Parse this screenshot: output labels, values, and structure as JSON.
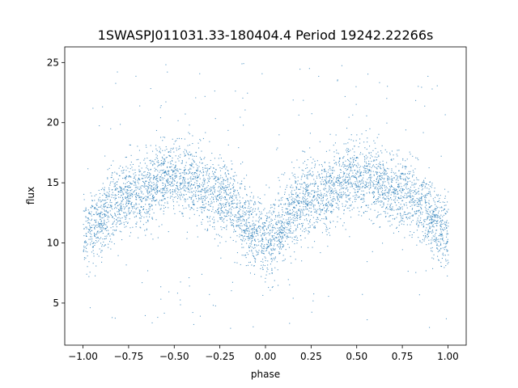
{
  "chart_data": {
    "type": "scatter",
    "title": "1SWASPJ011031.33-180404.4 Period 19242.22266s",
    "xlabel": "phase",
    "ylabel": "flux",
    "xlim": [
      -1.1,
      1.1
    ],
    "ylim": [
      1.5,
      26.3
    ],
    "xticks": [
      -1.0,
      -0.75,
      -0.5,
      -0.25,
      0.0,
      0.25,
      0.5,
      0.75,
      1.0
    ],
    "xtick_labels": [
      "−1.00",
      "−0.75",
      "−0.50",
      "−0.25",
      "0.00",
      "0.25",
      "0.50",
      "0.75",
      "1.00"
    ],
    "yticks": [
      5,
      10,
      15,
      20,
      25
    ],
    "ytick_labels": [
      "5",
      "10",
      "15",
      "20",
      "25"
    ],
    "grid": false,
    "legend": "none",
    "marker_color": "#1f77b4",
    "series": [
      {
        "phase_curve_x": [
          -1.0,
          -0.75,
          -0.5,
          -0.25,
          0.0,
          0.25,
          0.5,
          0.75,
          1.0
        ],
        "phase_curve_flux": [
          11.0,
          13.8,
          15.6,
          13.9,
          10.3,
          13.8,
          15.6,
          14.2,
          11.0
        ],
        "typical_scatter_flux": 1.5,
        "flux_range": [
          2.8,
          25.0
        ]
      }
    ]
  }
}
